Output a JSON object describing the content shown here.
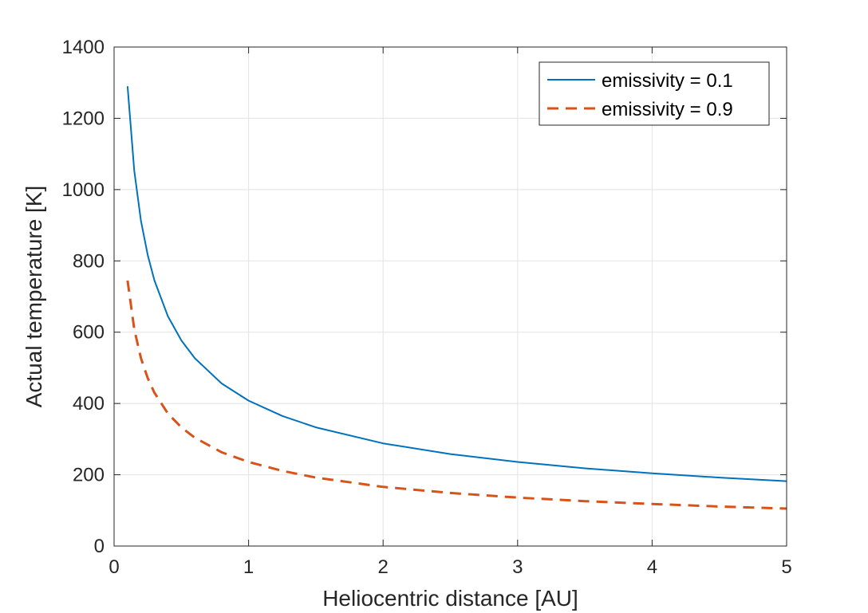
{
  "chart_data": {
    "type": "line",
    "title": "",
    "xlabel": "Heliocentric distance [AU]",
    "ylabel": "Actual temperature [K]",
    "xlim": [
      0,
      5
    ],
    "ylim": [
      0,
      1400
    ],
    "xticks": [
      0,
      1,
      2,
      3,
      4,
      5
    ],
    "yticks": [
      0,
      200,
      400,
      600,
      800,
      1000,
      1200,
      1400
    ],
    "grid": true,
    "legend_position": "top-right",
    "x": [
      0.1,
      0.15,
      0.2,
      0.25,
      0.3,
      0.4,
      0.5,
      0.6,
      0.8,
      1.0,
      1.25,
      1.5,
      2.0,
      2.5,
      3.0,
      3.5,
      4.0,
      4.5,
      5.0
    ],
    "series": [
      {
        "name": "emissivity = 0.1",
        "color": "#0072BD",
        "style": "solid",
        "values": [
          1290,
          1053,
          912,
          816,
          745,
          645,
          577,
          527,
          456,
          408,
          365,
          333,
          288,
          258,
          236,
          218,
          204,
          192,
          182
        ]
      },
      {
        "name": "emissivity = 0.9",
        "color": "#D95319",
        "style": "dashed",
        "values": [
          745,
          608,
          527,
          471,
          430,
          372,
          333,
          304,
          263,
          236,
          211,
          192,
          166,
          149,
          136,
          126,
          118,
          111,
          105
        ]
      }
    ]
  }
}
